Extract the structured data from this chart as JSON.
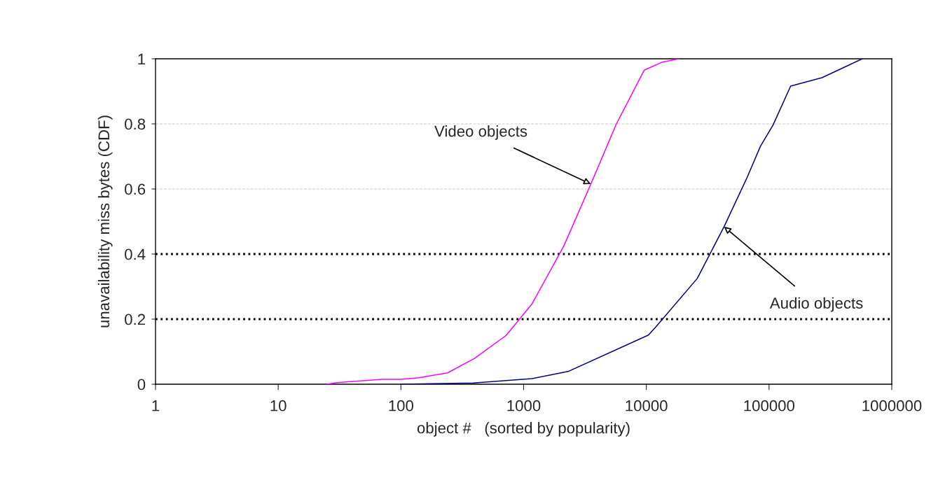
{
  "chart_data": {
    "type": "line",
    "xlabel": "object #   (sorted by popularity)",
    "ylabel": "unavailability miss bytes (CDF)",
    "log": "x",
    "xlim": [
      1,
      1000000
    ],
    "xticks": [
      1,
      10,
      100,
      1000,
      10000,
      100000,
      1000000
    ],
    "ylim": [
      0,
      1
    ],
    "yticks": [
      0,
      0.2,
      0.4,
      0.6,
      0.8,
      1
    ],
    "marker": "none",
    "line_style": "solid",
    "ref_lines": [
      {
        "axis": "y",
        "value": 0.2,
        "color": "#000000",
        "line_style": "dotted"
      },
      {
        "axis": "y",
        "value": 0.6,
        "color": "#cccccc",
        "line_style": "dashed"
      },
      {
        "axis": "y",
        "value": 0.8,
        "color": "#cccccc",
        "line_style": "dashed"
      },
      {
        "axis": "y",
        "value": 0.4,
        "color": "#000000",
        "line_style": "dotted"
      }
    ],
    "series": [
      {
        "color": "#ff00ff",
        "x": [
          25,
          30,
          70,
          100,
          140,
          240,
          400,
          720,
          1170,
          2120,
          3530,
          5700,
          9600,
          13500,
          18500
        ],
        "values": [
          0,
          0.005,
          0.015,
          0.015,
          0.02,
          0.035,
          0.08,
          0.15,
          0.247,
          0.424,
          0.615,
          0.8,
          0.965,
          0.99,
          1
        ]
      },
      {
        "color": "#000080",
        "x": [
          100,
          390,
          1170,
          2300,
          10400,
          12000,
          26000,
          43000,
          66000,
          85000,
          108000,
          150000,
          270000,
          575000
        ],
        "values": [
          0,
          0.004,
          0.017,
          0.039,
          0.151,
          0.177,
          0.325,
          0.484,
          0.634,
          0.731,
          0.797,
          0.916,
          0.942,
          1
        ]
      }
    ],
    "annotations": [
      {
        "text": "Video objects",
        "x": 3530,
        "y": 0.615
      },
      {
        "text": "Audio objects",
        "x": 43000,
        "y": 0.484
      }
    ]
  }
}
